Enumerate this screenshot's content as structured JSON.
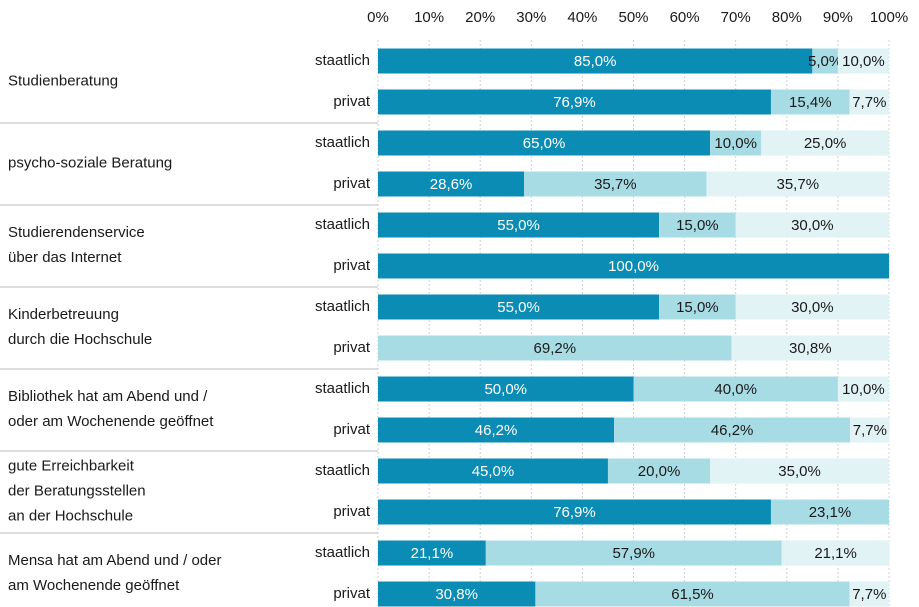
{
  "chart_data": {
    "type": "stacked-barh",
    "groups": [
      [
        "Studienberatung"
      ],
      [
        "psycho-soziale Beratung"
      ],
      [
        "Studierendenservice",
        "über das Internet"
      ],
      [
        "Kinderbetreuung",
        "durch die Hochschule"
      ],
      [
        "Bibliothek hat am Abend und /",
        "oder am Wochenende geöffnet"
      ],
      [
        "gute Erreichbarkeit",
        "der Beratungsstellen",
        "an der Hochschule"
      ],
      [
        "Mensa hat am Abend und / oder",
        "am Wochenende geöffnet"
      ]
    ],
    "categories": [
      "staatlich",
      "privat",
      "staatlich",
      "privat",
      "staatlich",
      "privat",
      "staatlich",
      "privat",
      "staatlich",
      "privat",
      "staatlich",
      "privat",
      "staatlich",
      "privat"
    ],
    "series": [
      {
        "color": "#0b8cb5",
        "values": [
          85.0,
          76.9,
          65.0,
          28.6,
          55.0,
          100.0,
          55.0,
          null,
          50.0,
          46.2,
          45.0,
          76.9,
          21.1,
          30.8
        ],
        "value_labels": [
          "85,0%",
          "76,9%",
          "65,0%",
          "28,6%",
          "55,0%",
          "100,0%",
          "55,0%",
          null,
          "50,0%",
          "46,2%",
          "45,0%",
          "76,9%",
          "21,1%",
          "30,8%"
        ]
      },
      {
        "color": "#a8dce5",
        "values": [
          5.0,
          15.4,
          10.0,
          35.7,
          15.0,
          null,
          15.0,
          69.2,
          40.0,
          46.2,
          20.0,
          23.1,
          57.9,
          61.5
        ],
        "value_labels": [
          "5,0%",
          "15,4%",
          "10,0%",
          "35,7%",
          "15,0%",
          null,
          "15,0%",
          "69,2%",
          "40,0%",
          "46,2%",
          "20,0%",
          "23,1%",
          "57,9%",
          "61,5%"
        ]
      },
      {
        "color": "#e2f3f6",
        "values": [
          10.0,
          7.7,
          25.0,
          35.7,
          30.0,
          null,
          30.0,
          30.8,
          10.0,
          7.7,
          35.0,
          null,
          21.1,
          7.7
        ],
        "value_labels": [
          "10,0%",
          "7,7%",
          "25,0%",
          "35,7%",
          "30,0%",
          null,
          "30,0%",
          "30,8%",
          "10,0%",
          "7,7%",
          "35,0%",
          null,
          "21,1%",
          "7,7%"
        ]
      }
    ],
    "xlim": [
      0,
      100
    ],
    "xticks": [
      {
        "value": 0,
        "label": "0%"
      },
      {
        "value": 10,
        "label": "10%"
      },
      {
        "value": 20,
        "label": "20%"
      },
      {
        "value": 30,
        "label": "30%"
      },
      {
        "value": 40,
        "label": "40%"
      },
      {
        "value": 50,
        "label": "50%"
      },
      {
        "value": 60,
        "label": "60%"
      },
      {
        "value": 70,
        "label": "70%"
      },
      {
        "value": 80,
        "label": "80%"
      },
      {
        "value": 90,
        "label": "90%"
      },
      {
        "value": 100,
        "label": "100%"
      }
    ],
    "grid": true
  }
}
